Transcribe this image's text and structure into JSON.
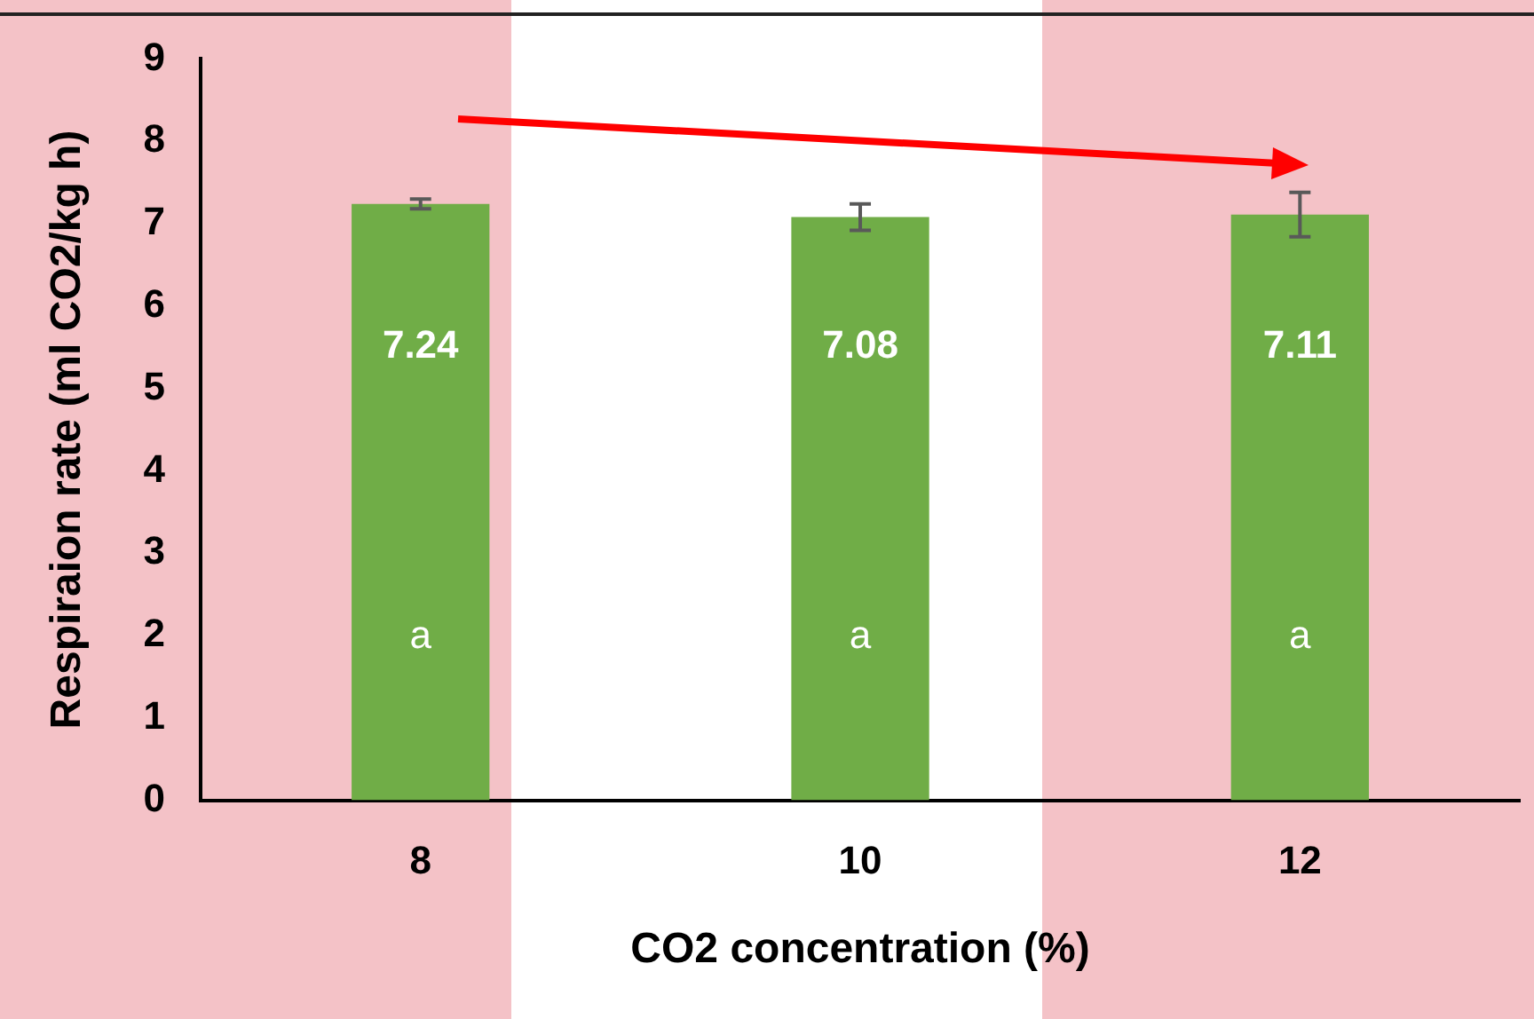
{
  "chart_data": {
    "type": "bar",
    "xlabel": "CO2 concentration (%)",
    "ylabel": "Respiraion rate (ml CO2/kg h)",
    "categories": [
      "8",
      "10",
      "12"
    ],
    "values": [
      7.24,
      7.08,
      7.11
    ],
    "errors": [
      0.06,
      0.16,
      0.27
    ],
    "color": "#70ad47",
    "ylim": [
      0,
      9
    ],
    "yticks": [
      0,
      1,
      2,
      3,
      4,
      5,
      6,
      7,
      8,
      9
    ],
    "grid": false,
    "legend": false,
    "data_labels": true,
    "annotations": [
      "a",
      "a",
      "a"
    ]
  }
}
